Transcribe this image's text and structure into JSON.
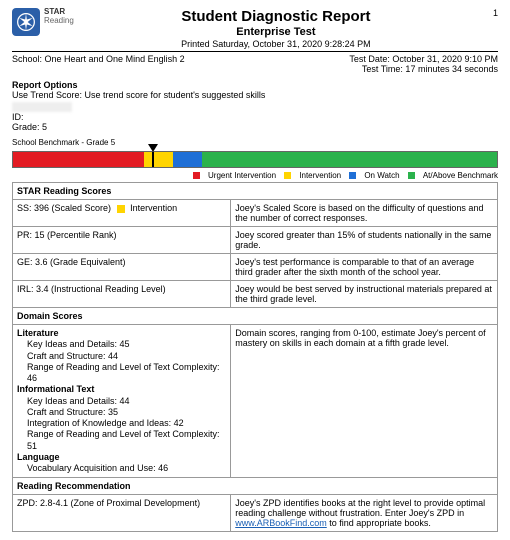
{
  "brand": {
    "line1": "STAR",
    "line2": "Reading"
  },
  "page_number": "1",
  "title": "Student Diagnostic Report",
  "subtitle": "Enterprise Test",
  "printed": "Printed Saturday, October 31, 2020 9:28:24 PM",
  "school_label": "School: One Heart and One Mind English 2",
  "test_date": "Test Date: October 31, 2020 9:10 PM",
  "test_time": "Test Time: 17 minutes 34 seconds",
  "report_options_head": "Report Options",
  "report_options_text": "Use Trend Score: Use trend score for student's suggested skills",
  "student_id": "ID:",
  "student_grade": "Grade: 5",
  "benchmark_label": "School Benchmark - Grade 5",
  "benchmark": {
    "segments": [
      {
        "color": "#e31b23",
        "width": 27
      },
      {
        "color": "#ffd400",
        "width": 6
      },
      {
        "color": "#1f6fd6",
        "width": 6
      },
      {
        "color": "#2bb24c",
        "width": 61
      }
    ],
    "marker_pct": 29
  },
  "legend": {
    "urgent": {
      "color": "#e31b23",
      "label": "Urgent Intervention"
    },
    "intervention": {
      "color": "#ffd400",
      "label": "Intervention"
    },
    "onwatch": {
      "color": "#1f6fd6",
      "label": "On Watch"
    },
    "atabove": {
      "color": "#2bb24c",
      "label": "At/Above Benchmark"
    }
  },
  "scores_head": "STAR Reading Scores",
  "ss": {
    "label": "SS: 396 (Scaled Score)",
    "tag": "Intervention",
    "tag_color": "#ffd400",
    "desc": "Joey's Scaled Score is based on the difficulty of questions and the number of correct responses."
  },
  "pr": {
    "label": "PR: 15 (Percentile Rank)",
    "desc": "Joey scored greater than 15% of students nationally in the same grade."
  },
  "ge": {
    "label": "GE: 3.6 (Grade Equivalent)",
    "desc": "Joey's test performance is comparable to that of an average third grader after the sixth month of the school year."
  },
  "irl": {
    "label": "IRL: 3.4 (Instructional Reading Level)",
    "desc": "Joey would be best served by instructional materials prepared at the third grade level."
  },
  "domain_head": "Domain Scores",
  "domain_desc": "Domain scores, ranging from 0-100, estimate Joey's percent of mastery on skills in each domain at a fifth grade level.",
  "domains": {
    "lit": "Literature",
    "lit1": "Key Ideas and Details: 45",
    "lit2": "Craft and Structure: 44",
    "lit3": "Range of Reading and Level of Text Complexity: 46",
    "info": "Informational Text",
    "info1": "Key Ideas and Details: 44",
    "info2": "Craft and Structure: 35",
    "info3": "Integration of Knowledge and Ideas: 42",
    "info4": "Range of Reading and Level of Text Complexity: 51",
    "lang": "Language",
    "lang1": "Vocabulary Acquisition and Use: 46"
  },
  "rec_head": "Reading Recommendation",
  "zpd": {
    "label": "ZPD: 2.8-4.1 (Zone of Proximal Development)",
    "desc_pre": "Joey's ZPD identifies books at the right level to provide optimal reading challenge without frustration. Enter Joey's ZPD in ",
    "link": "www.ARBookFind.com",
    "desc_post": " to find appropriate books."
  }
}
